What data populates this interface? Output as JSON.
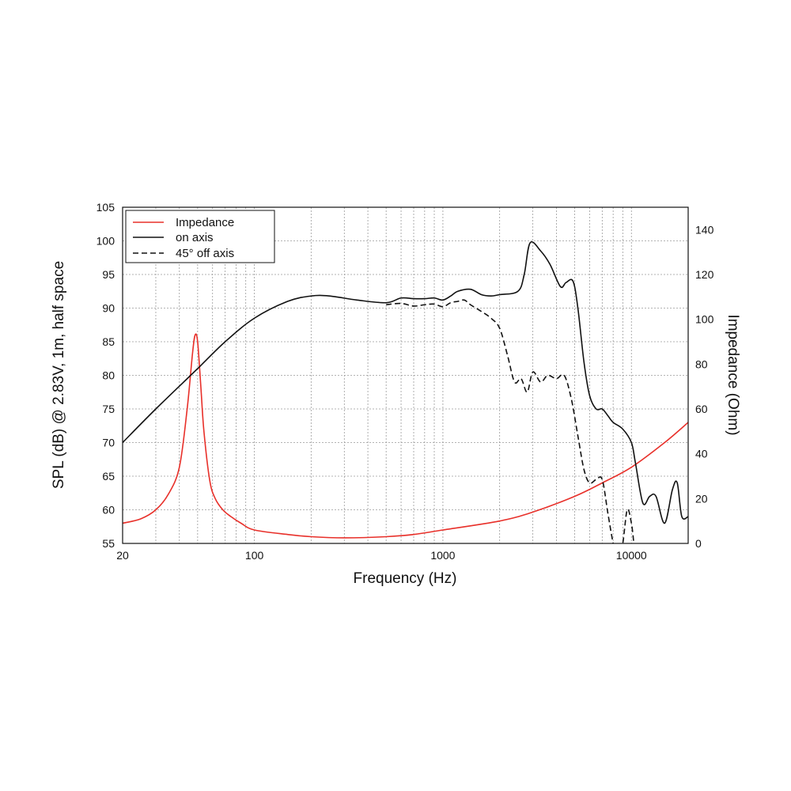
{
  "chart_data": {
    "type": "line",
    "xlabel": "Frequency (Hz)",
    "ylabel": "SPL (dB) @ 2.83V, 1m, half space",
    "y2label": "Impedance (Ohm)",
    "x_scale": "log",
    "xlim": [
      20,
      20000
    ],
    "ylim": [
      55,
      105
    ],
    "y2lim": [
      0,
      150
    ],
    "x_ticks": [
      20,
      100,
      1000,
      10000
    ],
    "y_ticks": [
      55,
      60,
      65,
      70,
      75,
      80,
      85,
      90,
      95,
      100,
      105
    ],
    "y2_ticks": [
      0,
      20,
      40,
      60,
      80,
      100,
      120,
      140
    ],
    "grid": true,
    "legend_position": "top-left",
    "series": [
      {
        "name": "Impedance",
        "axis": "right",
        "color": "#e8302a",
        "style": "solid",
        "x": [
          20,
          25,
          30,
          35,
          40,
          44,
          47,
          48.5,
          50,
          52,
          54,
          58,
          62,
          68,
          75,
          85,
          100,
          150,
          200,
          300,
          500,
          700,
          1000,
          2000,
          3000,
          5000,
          7000,
          10000,
          15000,
          20000
        ],
        "y": [
          9,
          11,
          15,
          22,
          34,
          60,
          85,
          93,
          90,
          70,
          50,
          28,
          20,
          15,
          12,
          9,
          6,
          4,
          3,
          2.5,
          3,
          4,
          6,
          10,
          14,
          21,
          27,
          34,
          45,
          54
        ]
      },
      {
        "name": "on axis",
        "axis": "left",
        "color": "#111111",
        "style": "solid",
        "x": [
          20,
          30,
          50,
          70,
          100,
          150,
          200,
          250,
          350,
          500,
          600,
          700,
          800,
          900,
          1000,
          1100,
          1200,
          1400,
          1600,
          1800,
          2000,
          2500,
          2700,
          2900,
          3300,
          3700,
          4200,
          4500,
          4900,
          5200,
          5600,
          6000,
          6500,
          7000,
          7500,
          8000,
          9000,
          10000,
          10500,
          11500,
          12500,
          13500,
          15000,
          16500,
          17500,
          18500,
          20000
        ],
        "y": [
          70,
          75,
          81,
          85,
          88.5,
          91,
          91.8,
          91.8,
          91.2,
          90.8,
          91.5,
          91.4,
          91.4,
          91.5,
          91.2,
          91.8,
          92.5,
          92.8,
          92,
          91.8,
          92,
          92.5,
          95,
          99.7,
          98.5,
          96.5,
          93.2,
          93.8,
          94,
          90,
          82,
          77,
          75,
          75,
          74,
          73,
          72,
          70,
          67,
          61,
          62,
          62,
          58,
          63,
          64,
          59,
          59
        ]
      },
      {
        "name": "45° off axis",
        "axis": "left",
        "color": "#111111",
        "style": "dashed",
        "x": [
          500,
          600,
          700,
          800,
          900,
          1000,
          1100,
          1200,
          1300,
          1400,
          1600,
          1800,
          2000,
          2200,
          2400,
          2600,
          2800,
          3000,
          3300,
          3600,
          4000,
          4400,
          4800,
          5200,
          5600,
          6000,
          6500,
          7000,
          7500,
          8000,
          8500,
          9000,
          9500,
          10000,
          10300
        ],
        "y": [
          90.5,
          90.7,
          90.3,
          90.5,
          90.6,
          90.2,
          90.8,
          91,
          91.2,
          90.5,
          89.5,
          88.5,
          87,
          83,
          79,
          79.5,
          77.5,
          80.5,
          79,
          80,
          79.5,
          80,
          76.5,
          71,
          66,
          64,
          64.5,
          64.5,
          59.5,
          55,
          52,
          55,
          60,
          58,
          55
        ]
      }
    ]
  }
}
